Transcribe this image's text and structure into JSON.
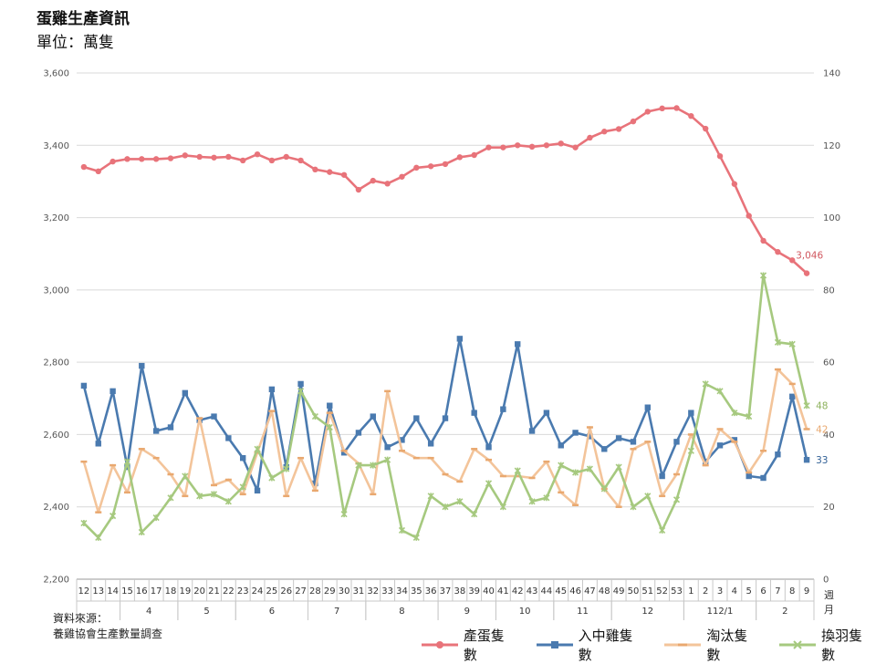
{
  "title": "蛋雞生產資訊",
  "subtitle": "單位：萬隻",
  "source_line1": "資料來源：",
  "source_line2": "養雞協會生產數量調查",
  "chart_data": {
    "type": "line",
    "title": "蛋雞生產資訊",
    "ylabel_left": "",
    "ylabel_right": "",
    "y_left_lim": [
      2200,
      3600
    ],
    "y_left_ticks": [
      "2,200",
      "2,400",
      "2,600",
      "2,800",
      "3,000",
      "3,200",
      "3,400",
      "3,600"
    ],
    "y_right_lim": [
      0,
      140
    ],
    "y_right_ticks": [
      "0",
      "20",
      "40",
      "60",
      "80",
      "100",
      "120",
      "140"
    ],
    "grid": true,
    "legend_position": "bottom-right",
    "x_axis_week_label": "週",
    "x_axis_month_label": "月",
    "weeks": [
      "12",
      "13",
      "14",
      "15",
      "16",
      "17",
      "18",
      "19",
      "20",
      "21",
      "22",
      "23",
      "24",
      "25",
      "26",
      "27",
      "28",
      "29",
      "30",
      "31",
      "32",
      "33",
      "34",
      "35",
      "36",
      "37",
      "38",
      "39",
      "40",
      "41",
      "42",
      "43",
      "44",
      "45",
      "46",
      "47",
      "48",
      "49",
      "50",
      "51",
      "52",
      "53",
      "1",
      "2",
      "3",
      "4",
      "5",
      "6",
      "7",
      "8",
      "9"
    ],
    "months": [
      {
        "label": "",
        "from": 0,
        "to": 2
      },
      {
        "label": "4",
        "from": 3,
        "to": 6
      },
      {
        "label": "5",
        "from": 7,
        "to": 10
      },
      {
        "label": "6",
        "from": 11,
        "to": 15
      },
      {
        "label": "7",
        "from": 16,
        "to": 19
      },
      {
        "label": "8",
        "from": 20,
        "to": 24
      },
      {
        "label": "9",
        "from": 25,
        "to": 28
      },
      {
        "label": "10",
        "from": 29,
        "to": 32
      },
      {
        "label": "11",
        "from": 33,
        "to": 36
      },
      {
        "label": "12",
        "from": 37,
        "to": 41
      },
      {
        "label": "112/1",
        "from": 42,
        "to": 46
      },
      {
        "label": "2",
        "from": 47,
        "to": 50
      }
    ],
    "series": [
      {
        "name": "產蛋隻數",
        "axis": "left",
        "color": "#e8737a",
        "marker": "circle",
        "values": [
          3340,
          3328,
          3355,
          3362,
          3362,
          3362,
          3364,
          3372,
          3368,
          3366,
          3368,
          3358,
          3375,
          3358,
          3368,
          3358,
          3333,
          3326,
          3318,
          3277,
          3302,
          3294,
          3313,
          3338,
          3342,
          3348,
          3367,
          3373,
          3394,
          3394,
          3400,
          3396,
          3400,
          3405,
          3394,
          3421,
          3438,
          3445,
          3466,
          3493,
          3502,
          3503,
          3481,
          3446,
          3370,
          3293,
          3205,
          3136,
          3105,
          3082,
          3046
        ],
        "end_label": "3,046"
      },
      {
        "name": "入中雞隻數",
        "axis": "right",
        "color": "#4a7aaf",
        "marker": "square",
        "values": [
          53.5,
          37.5,
          52,
          31,
          59,
          41,
          42,
          51.5,
          44,
          45,
          39,
          33.5,
          24.5,
          52.5,
          31,
          54,
          26.5,
          48,
          35,
          40.5,
          45,
          36.5,
          38.5,
          44.5,
          37.5,
          44.5,
          66.5,
          46,
          36.5,
          47,
          65,
          41,
          46,
          37,
          40.5,
          39.5,
          36,
          39,
          38,
          47.5,
          28.5,
          38,
          46,
          32.5,
          37,
          38.5,
          28.5,
          28,
          34.5,
          50.5,
          33
        ],
        "end_label": "33"
      },
      {
        "name": "淘汰隻數",
        "axis": "right",
        "color": "#f3c49a",
        "marker": "dash",
        "values": [
          32.5,
          18.5,
          31.5,
          24,
          36,
          33.5,
          29,
          23,
          44.5,
          26,
          27.5,
          23.5,
          35,
          46.5,
          23,
          33.5,
          24.5,
          46,
          35.5,
          32,
          23.5,
          52,
          35.5,
          33.5,
          33.5,
          29,
          27,
          36,
          33,
          28.5,
          28.5,
          28,
          32.5,
          24,
          20.5,
          42,
          25,
          20,
          36,
          38,
          23,
          29,
          40,
          31.5,
          41.5,
          38,
          29.5,
          35.5,
          58,
          54,
          41.5
        ],
        "end_label": "42"
      },
      {
        "name": "換羽隻數",
        "axis": "right",
        "color": "#a6c97f",
        "marker": "star",
        "values": [
          15.5,
          11.5,
          17.5,
          32.5,
          13,
          17,
          22.5,
          28.5,
          23,
          23.5,
          21.5,
          25.5,
          36,
          28,
          30.5,
          52,
          45,
          42,
          18,
          31.5,
          31.5,
          33,
          13.5,
          11.5,
          23,
          20,
          21.5,
          18,
          26.5,
          20,
          30,
          21.5,
          22.5,
          31.5,
          29.5,
          30.5,
          25,
          31,
          20,
          23,
          13.5,
          22,
          35.5,
          54,
          52,
          46,
          45,
          84,
          65.5,
          65,
          48
        ],
        "end_label": "48"
      }
    ]
  }
}
